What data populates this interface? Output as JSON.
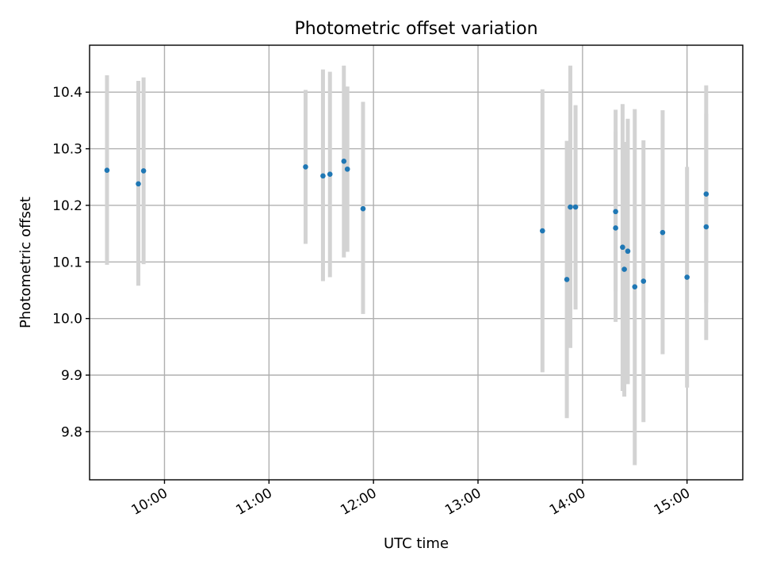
{
  "chart_data": {
    "type": "scatter",
    "title": "Photometric offset variation",
    "xlabel": "UTC time",
    "ylabel": "Photometric offset",
    "xlim": [
      "09:17",
      "15:32"
    ],
    "ylim": [
      9.715,
      10.483
    ],
    "x_ticks": [
      "10:00",
      "11:00",
      "12:00",
      "13:00",
      "14:00",
      "15:00"
    ],
    "y_ticks": [
      9.8,
      9.9,
      10.0,
      10.1,
      10.2,
      10.3,
      10.4
    ],
    "grid": true,
    "colors": {
      "point": "#1f77b4",
      "error_bar": "#d3d3d3",
      "grid": "#b0b0b0"
    },
    "series": [
      {
        "points": [
          {
            "time": "09:27",
            "value": 10.262,
            "err_low": 10.095,
            "err_high": 10.43
          },
          {
            "time": "09:45",
            "value": 10.238,
            "err_low": 10.058,
            "err_high": 10.42
          },
          {
            "time": "09:48",
            "value": 10.261,
            "err_low": 10.096,
            "err_high": 10.426
          },
          {
            "time": "11:21",
            "value": 10.268,
            "err_low": 10.132,
            "err_high": 10.404
          },
          {
            "time": "11:31",
            "value": 10.252,
            "err_low": 10.066,
            "err_high": 10.44
          },
          {
            "time": "11:35",
            "value": 10.255,
            "err_low": 10.073,
            "err_high": 10.436
          },
          {
            "time": "11:43",
            "value": 10.278,
            "err_low": 10.108,
            "err_high": 10.447
          },
          {
            "time": "11:45",
            "value": 10.264,
            "err_low": 10.118,
            "err_high": 10.41
          },
          {
            "time": "11:54",
            "value": 10.194,
            "err_low": 10.008,
            "err_high": 10.383
          },
          {
            "time": "13:37",
            "value": 10.155,
            "err_low": 9.905,
            "err_high": 10.405
          },
          {
            "time": "13:51",
            "value": 10.069,
            "err_low": 9.824,
            "err_high": 10.314
          },
          {
            "time": "13:53",
            "value": 10.197,
            "err_low": 9.948,
            "err_high": 10.447
          },
          {
            "time": "13:56",
            "value": 10.197,
            "err_low": 10.016,
            "err_high": 10.377
          },
          {
            "time": "14:19",
            "value": 10.189,
            "err_low": 10.048,
            "err_high": 10.33
          },
          {
            "time": "14:19",
            "value": 10.16,
            "err_low": 9.994,
            "err_high": 10.369
          },
          {
            "time": "14:23",
            "value": 10.126,
            "err_low": 9.872,
            "err_high": 10.379
          },
          {
            "time": "14:24",
            "value": 10.087,
            "err_low": 9.862,
            "err_high": 10.312
          },
          {
            "time": "14:26",
            "value": 10.119,
            "err_low": 9.884,
            "err_high": 10.353
          },
          {
            "time": "14:30",
            "value": 10.056,
            "err_low": 9.741,
            "err_high": 10.37
          },
          {
            "time": "14:35",
            "value": 10.066,
            "err_low": 9.817,
            "err_high": 10.315
          },
          {
            "time": "14:46",
            "value": 10.152,
            "err_low": 9.937,
            "err_high": 10.368
          },
          {
            "time": "15:00",
            "value": 10.073,
            "err_low": 9.878,
            "err_high": 10.268
          },
          {
            "time": "15:11",
            "value": 10.22,
            "err_low": 10.028,
            "err_high": 10.412
          },
          {
            "time": "15:11",
            "value": 10.162,
            "err_low": 9.962,
            "err_high": 10.362
          }
        ]
      }
    ]
  }
}
